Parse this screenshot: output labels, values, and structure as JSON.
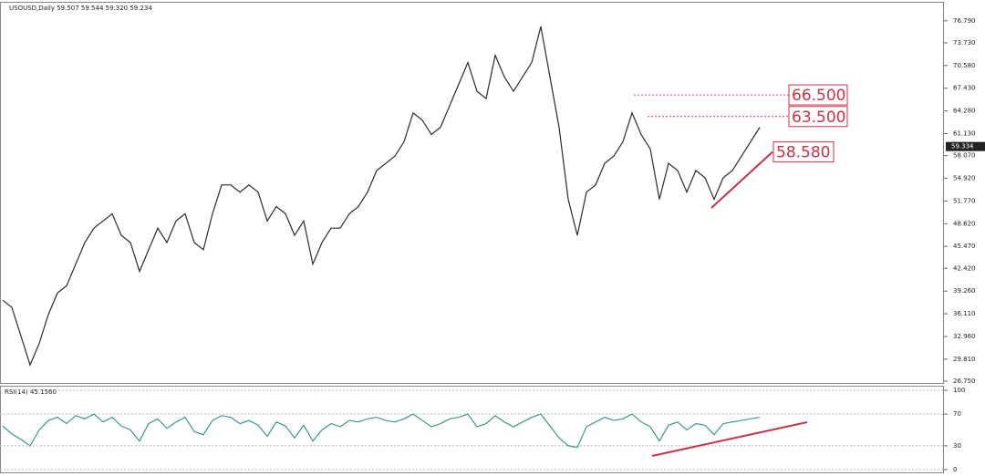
{
  "chart_data": [
    {
      "type": "line",
      "title": "USOUSD,Daily  59.507 59.544 59.320 59.234",
      "series": [
        {
          "name": "USOUSD",
          "color": "#2b2b2b",
          "values": [
            38,
            37,
            33,
            29,
            32,
            36,
            39,
            40,
            43,
            46,
            48,
            49,
            50,
            47,
            46,
            42,
            45,
            48,
            46,
            49,
            50,
            46,
            45,
            50,
            54,
            54,
            53,
            54,
            53,
            49,
            51,
            50,
            47,
            49,
            43,
            46,
            48,
            48,
            50,
            51,
            53,
            56,
            57,
            58,
            60,
            64,
            63,
            61,
            62,
            65,
            68,
            71,
            67,
            66,
            72,
            69,
            67,
            69,
            71,
            76,
            69,
            62,
            52,
            47,
            53,
            54,
            57,
            58,
            60,
            64,
            61,
            59,
            52,
            57,
            56,
            53,
            56,
            55,
            52,
            55,
            56,
            58,
            60,
            62
          ]
        }
      ],
      "ylim": [
        26.5,
        79.3
      ],
      "yticks": [
        {
          "value": 76.79,
          "label": "76.790"
        },
        {
          "value": 73.73,
          "label": "73.730"
        },
        {
          "value": 70.58,
          "label": "70.580"
        },
        {
          "value": 67.43,
          "label": "67.430"
        },
        {
          "value": 64.28,
          "label": "64.280"
        },
        {
          "value": 61.13,
          "label": "61.130"
        },
        {
          "value": 58.07,
          "label": "58.070"
        },
        {
          "value": 54.92,
          "label": "54.920"
        },
        {
          "value": 51.77,
          "label": "51.770"
        },
        {
          "value": 48.62,
          "label": "48.620"
        },
        {
          "value": 45.47,
          "label": "45.470"
        },
        {
          "value": 42.42,
          "label": "42.420"
        },
        {
          "value": 39.26,
          "label": "39.260"
        },
        {
          "value": 36.11,
          "label": "36.110"
        },
        {
          "value": 32.96,
          "label": "32.960"
        },
        {
          "value": 29.81,
          "label": "29.810"
        },
        {
          "value": 26.75,
          "label": "26.750"
        }
      ],
      "last_price": {
        "value": 59.334,
        "label": "59.334"
      },
      "annotations": [
        {
          "value": 66.5,
          "label": "66.500"
        },
        {
          "value": 63.5,
          "label": "63.500"
        },
        {
          "value": 58.58,
          "label": "58.580"
        }
      ]
    },
    {
      "type": "line",
      "title": "RSI(14) 45.1560",
      "series": [
        {
          "name": "RSI(14)",
          "color": "#3a9a8a",
          "values": [
            55,
            45,
            38,
            30,
            50,
            62,
            66,
            58,
            68,
            64,
            70,
            60,
            66,
            55,
            50,
            36,
            58,
            64,
            52,
            60,
            66,
            48,
            44,
            62,
            68,
            66,
            58,
            62,
            56,
            42,
            60,
            55,
            40,
            56,
            36,
            50,
            58,
            54,
            62,
            60,
            64,
            66,
            62,
            60,
            64,
            70,
            62,
            54,
            58,
            64,
            66,
            70,
            54,
            58,
            68,
            60,
            54,
            60,
            66,
            70,
            55,
            40,
            30,
            28,
            54,
            60,
            66,
            62,
            64,
            70,
            60,
            54,
            36,
            56,
            60,
            50,
            58,
            56,
            44,
            58,
            60,
            62,
            64,
            66
          ]
        }
      ],
      "ylim": [
        0,
        100
      ],
      "yticks": [
        0,
        30,
        70,
        100
      ]
    }
  ]
}
